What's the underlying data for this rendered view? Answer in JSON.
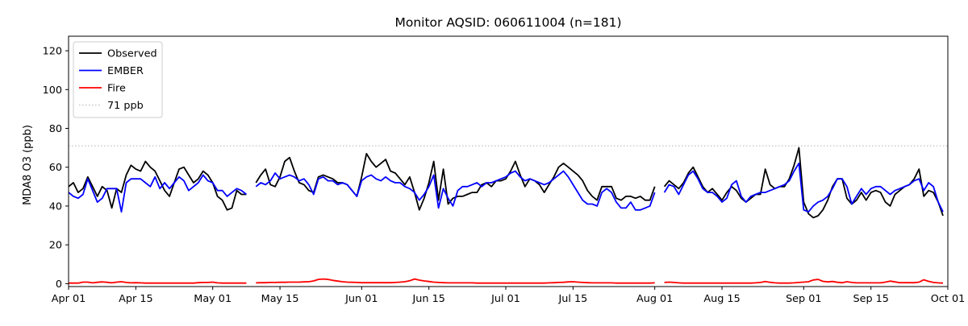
{
  "layout": {
    "background": "#ffffff"
  },
  "chart_data": {
    "type": "line",
    "title": "Monitor AQSID: 060611004 (n=181)",
    "xlabel": "",
    "ylabel": "MDA8 O3 (ppb)",
    "grid": false,
    "legend_position": "upper-left",
    "xlim_days": [
      0,
      183
    ],
    "ylim": [
      -1.5,
      127.5
    ],
    "y_ticks": [
      0,
      20,
      40,
      60,
      80,
      100,
      120
    ],
    "x_tick_days": [
      0,
      14,
      30,
      44,
      61,
      75,
      91,
      105,
      122,
      136,
      153,
      167,
      183
    ],
    "x_tick_labels": [
      "Apr 01",
      "Apr 15",
      "May 01",
      "May 15",
      "Jun 01",
      "Jun 15",
      "Jul 01",
      "Jul 15",
      "Aug 01",
      "Aug 15",
      "Sep 01",
      "Sep 15",
      "Oct 01"
    ],
    "x_description": "one value per day starting Apr 01; null = missing day",
    "threshold": {
      "value": 71,
      "label": "71 ppb",
      "color": "#cccccc",
      "style": "dotted"
    },
    "series": [
      {
        "name": "Observed",
        "color": "#000000",
        "values": [
          50,
          52,
          47,
          49,
          55,
          50,
          45,
          50,
          48,
          39,
          49,
          47,
          56,
          61,
          59,
          58,
          63,
          60,
          58,
          53,
          48,
          45,
          52,
          59,
          60,
          56,
          52,
          54,
          58,
          56,
          52,
          45,
          43,
          38,
          39,
          48,
          46,
          46,
          null,
          52,
          56,
          59,
          51,
          50,
          55,
          63,
          65,
          58,
          52,
          51,
          48,
          47,
          55,
          56,
          55,
          54,
          52,
          52,
          51,
          48,
          45,
          55,
          67,
          63,
          60,
          62,
          64,
          58,
          57,
          54,
          51,
          55,
          47,
          38,
          44,
          52,
          63,
          43,
          59,
          41,
          44,
          45,
          45,
          46,
          47,
          47,
          51,
          52,
          50,
          53,
          53,
          54,
          58,
          63,
          56,
          50,
          54,
          53,
          51,
          47,
          51,
          55,
          60,
          62,
          60,
          58,
          56,
          53,
          48,
          45,
          43,
          50,
          50,
          50,
          44,
          43,
          45,
          45,
          44,
          45,
          43,
          43,
          50,
          null,
          50,
          53,
          51,
          49,
          52,
          57,
          60,
          55,
          50,
          47,
          49,
          46,
          43,
          47,
          50,
          48,
          44,
          42,
          44,
          46,
          46,
          59,
          51,
          49,
          50,
          50,
          54,
          61,
          70,
          42,
          36,
          34,
          35,
          38,
          43,
          50,
          54,
          54,
          44,
          41,
          43,
          47,
          43,
          47,
          48,
          47,
          42,
          40,
          46,
          48,
          50,
          51,
          54,
          59,
          45,
          48,
          47,
          42,
          35
        ]
      },
      {
        "name": "EMBER",
        "color": "#0000ff",
        "values": [
          47,
          45,
          44,
          46,
          54,
          48,
          42,
          44,
          49,
          49,
          49,
          37,
          52,
          54,
          54,
          54,
          52,
          50,
          55,
          49,
          52,
          49,
          52,
          55,
          53,
          48,
          50,
          52,
          56,
          53,
          52,
          48,
          48,
          45,
          47,
          49,
          48,
          46,
          null,
          50,
          52,
          51,
          53,
          57,
          54,
          55,
          56,
          55,
          53,
          54,
          51,
          46,
          54,
          55,
          53,
          53,
          51,
          52,
          51,
          48,
          45,
          53,
          55,
          56,
          54,
          53,
          55,
          53,
          52,
          52,
          50,
          49,
          47,
          43,
          46,
          50,
          56,
          39,
          49,
          44,
          40,
          48,
          50,
          50,
          51,
          52,
          50,
          52,
          52,
          53,
          54,
          55,
          57,
          58,
          55,
          53,
          54,
          53,
          52,
          51,
          52,
          54,
          56,
          58,
          55,
          51,
          47,
          43,
          41,
          41,
          40,
          47,
          49,
          47,
          42,
          39,
          39,
          42,
          38,
          38,
          39,
          40,
          47,
          null,
          47,
          51,
          50,
          46,
          51,
          56,
          58,
          54,
          49,
          47,
          47,
          45,
          42,
          44,
          51,
          53,
          45,
          42,
          45,
          46,
          47,
          47,
          48,
          49,
          50,
          51,
          53,
          58,
          62,
          38,
          37,
          40,
          42,
          43,
          45,
          49,
          54,
          54,
          50,
          41,
          45,
          49,
          46,
          49,
          50,
          50,
          48,
          46,
          48,
          49,
          50,
          51,
          53,
          54,
          48,
          52,
          50,
          42,
          37
        ]
      },
      {
        "name": "Fire",
        "color": "#ff0000",
        "values": [
          0.3,
          0.3,
          0.3,
          0.8,
          0.8,
          0.4,
          0.7,
          0.9,
          0.7,
          0.4,
          0.8,
          1.0,
          0.6,
          0.4,
          0.5,
          0.4,
          0.3,
          0.3,
          0.3,
          0.3,
          0.3,
          0.3,
          0.3,
          0.3,
          0.3,
          0.3,
          0.3,
          0.5,
          0.6,
          0.6,
          0.8,
          0.4,
          0.3,
          0.3,
          0.3,
          0.3,
          0.3,
          0.3,
          null,
          0.4,
          0.5,
          0.5,
          0.6,
          0.6,
          0.7,
          0.7,
          0.8,
          0.8,
          0.8,
          0.9,
          1.0,
          1.4,
          2.2,
          2.4,
          2.2,
          1.7,
          1.3,
          1.0,
          0.8,
          0.7,
          0.6,
          0.5,
          0.5,
          0.5,
          0.5,
          0.5,
          0.5,
          0.5,
          0.6,
          0.8,
          1.0,
          1.5,
          2.4,
          1.8,
          1.4,
          1.1,
          0.8,
          0.6,
          0.5,
          0.4,
          0.4,
          0.4,
          0.4,
          0.4,
          0.4,
          0.3,
          0.3,
          0.3,
          0.3,
          0.3,
          0.3,
          0.3,
          0.3,
          0.3,
          0.3,
          0.3,
          0.3,
          0.3,
          0.3,
          0.3,
          0.4,
          0.5,
          0.6,
          0.7,
          0.9,
          1.0,
          0.8,
          0.6,
          0.5,
          0.4,
          0.4,
          0.4,
          0.4,
          0.4,
          0.3,
          0.3,
          0.3,
          0.3,
          0.3,
          0.3,
          0.3,
          0.3,
          0.4,
          null,
          0.6,
          0.8,
          0.6,
          0.4,
          0.3,
          0.3,
          0.3,
          0.3,
          0.3,
          0.3,
          0.3,
          0.3,
          0.3,
          0.3,
          0.3,
          0.3,
          0.3,
          0.3,
          0.3,
          0.4,
          0.6,
          1.1,
          0.7,
          0.4,
          0.3,
          0.3,
          0.3,
          0.4,
          0.6,
          0.8,
          1.0,
          1.9,
          2.2,
          1.2,
          0.9,
          1.1,
          0.7,
          0.5,
          1.0,
          0.6,
          0.4,
          0.4,
          0.4,
          0.4,
          0.4,
          0.4,
          0.8,
          1.3,
          0.9,
          0.5,
          0.5,
          0.5,
          0.5,
          0.8,
          2.0,
          1.2,
          0.6,
          0.4,
          0.3
        ]
      }
    ],
    "legend_entries": [
      {
        "label": "Observed",
        "color": "#000000",
        "dash": ""
      },
      {
        "label": "EMBER",
        "color": "#0000ff",
        "dash": ""
      },
      {
        "label": "Fire",
        "color": "#ff0000",
        "dash": ""
      },
      {
        "label": "71 ppb",
        "color": "#cccccc",
        "dash": "1.5 2.5"
      }
    ]
  }
}
